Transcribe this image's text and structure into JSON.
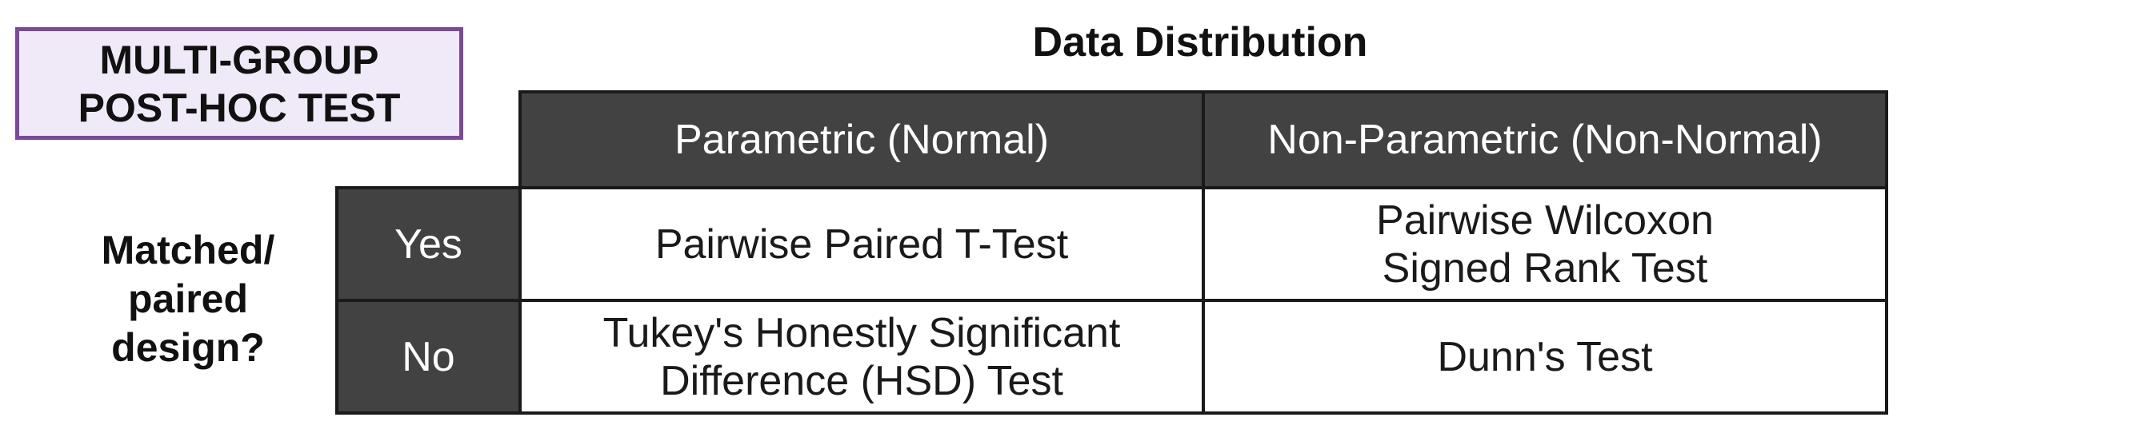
{
  "title": {
    "lines": [
      "MULTI-GROUP",
      "POST-HOC TEST"
    ]
  },
  "column_group_label": "Data Distribution",
  "row_group_label": {
    "lines": [
      "Matched/",
      "paired",
      "design?"
    ]
  },
  "columns": [
    "Parametric (Normal)",
    "Non-Parametric (Non-Normal)"
  ],
  "rows": [
    {
      "label": "Yes",
      "cells": [
        [
          "Pairwise Paired T-Test"
        ],
        [
          "Pairwise Wilcoxon",
          "Signed Rank Test"
        ]
      ]
    },
    {
      "label": "No",
      "cells": [
        [
          "Tukey's Honestly Significant",
          "Difference (HSD) Test"
        ],
        [
          "Dunn's Test"
        ]
      ]
    }
  ],
  "colors": {
    "header_fill": "#424242",
    "title_fill": "#efe9f8",
    "title_border": "#7a4a97"
  }
}
